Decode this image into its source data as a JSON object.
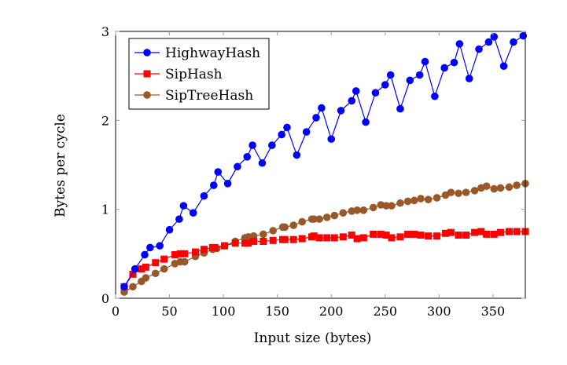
{
  "chart_data": {
    "type": "line",
    "title": "",
    "xlabel": "Input size (bytes)",
    "ylabel": "Bytes per cycle",
    "xlim": [
      0,
      380
    ],
    "ylim": [
      0,
      3
    ],
    "xticks": [
      0,
      50,
      100,
      150,
      200,
      250,
      300,
      350
    ],
    "yticks": [
      0,
      1,
      2,
      3
    ],
    "grid": false,
    "legend_position": "top-left",
    "series": [
      {
        "name": "HighwayHash",
        "color": "#0000ff",
        "marker": "circle",
        "x": [
          8,
          18,
          27,
          32,
          41,
          50,
          59,
          63,
          72,
          82,
          91,
          95,
          104,
          113,
          122,
          127,
          136,
          145,
          154,
          159,
          168,
          177,
          186,
          191,
          200,
          209,
          219,
          223,
          232,
          241,
          250,
          255,
          264,
          273,
          282,
          287,
          296,
          305,
          314,
          319,
          328,
          337,
          346,
          351,
          360,
          369,
          378
        ],
        "y": [
          0.13,
          0.33,
          0.49,
          0.57,
          0.59,
          0.77,
          0.89,
          1.04,
          0.96,
          1.15,
          1.27,
          1.42,
          1.29,
          1.48,
          1.59,
          1.72,
          1.52,
          1.72,
          1.84,
          1.92,
          1.61,
          1.87,
          2.03,
          2.14,
          1.79,
          2.11,
          2.22,
          2.33,
          1.98,
          2.31,
          2.4,
          2.51,
          2.13,
          2.45,
          2.51,
          2.66,
          2.27,
          2.59,
          2.65,
          2.86,
          2.47,
          2.8,
          2.88,
          2.94,
          2.61,
          2.88,
          2.95
        ]
      },
      {
        "name": "SipHash",
        "color": "#ff0000",
        "marker": "square",
        "x": [
          8,
          16,
          24,
          28,
          37,
          45,
          55,
          60,
          64,
          74,
          82,
          90,
          92,
          101,
          111,
          120,
          123,
          128,
          137,
          146,
          155,
          157,
          165,
          173,
          182,
          184,
          189,
          196,
          203,
          211,
          219,
          224,
          230,
          239,
          246,
          251,
          256,
          264,
          271,
          277,
          283,
          290,
          298,
          306,
          311,
          318,
          325,
          333,
          339,
          344,
          351,
          357,
          365,
          372,
          380
        ],
        "y": [
          0.13,
          0.27,
          0.33,
          0.35,
          0.4,
          0.44,
          0.49,
          0.5,
          0.5,
          0.52,
          0.55,
          0.57,
          0.57,
          0.59,
          0.62,
          0.62,
          0.62,
          0.64,
          0.64,
          0.65,
          0.66,
          0.66,
          0.66,
          0.67,
          0.69,
          0.7,
          0.68,
          0.68,
          0.68,
          0.69,
          0.71,
          0.67,
          0.68,
          0.72,
          0.72,
          0.71,
          0.68,
          0.69,
          0.72,
          0.72,
          0.71,
          0.7,
          0.7,
          0.73,
          0.74,
          0.71,
          0.71,
          0.74,
          0.75,
          0.72,
          0.72,
          0.74,
          0.75,
          0.75,
          0.75
        ]
      },
      {
        "name": "SipTreeHash",
        "color": "#99582a",
        "marker": "circle",
        "x": [
          8,
          16,
          24,
          28,
          37,
          45,
          55,
          60,
          64,
          74,
          82,
          90,
          94,
          101,
          111,
          120,
          123,
          128,
          137,
          146,
          155,
          157,
          165,
          173,
          182,
          184,
          189,
          196,
          203,
          211,
          219,
          224,
          230,
          239,
          246,
          251,
          256,
          264,
          271,
          277,
          283,
          290,
          298,
          306,
          311,
          318,
          325,
          333,
          339,
          344,
          351,
          357,
          365,
          372,
          380
        ],
        "y": [
          0.07,
          0.13,
          0.19,
          0.23,
          0.28,
          0.33,
          0.39,
          0.41,
          0.41,
          0.47,
          0.51,
          0.55,
          0.56,
          0.59,
          0.64,
          0.68,
          0.69,
          0.7,
          0.72,
          0.76,
          0.8,
          0.8,
          0.82,
          0.86,
          0.89,
          0.89,
          0.89,
          0.91,
          0.93,
          0.96,
          0.98,
          0.99,
          0.99,
          1.02,
          1.05,
          1.04,
          1.04,
          1.07,
          1.09,
          1.1,
          1.12,
          1.11,
          1.13,
          1.16,
          1.19,
          1.18,
          1.19,
          1.21,
          1.24,
          1.26,
          1.23,
          1.24,
          1.25,
          1.27,
          1.29
        ]
      }
    ]
  }
}
